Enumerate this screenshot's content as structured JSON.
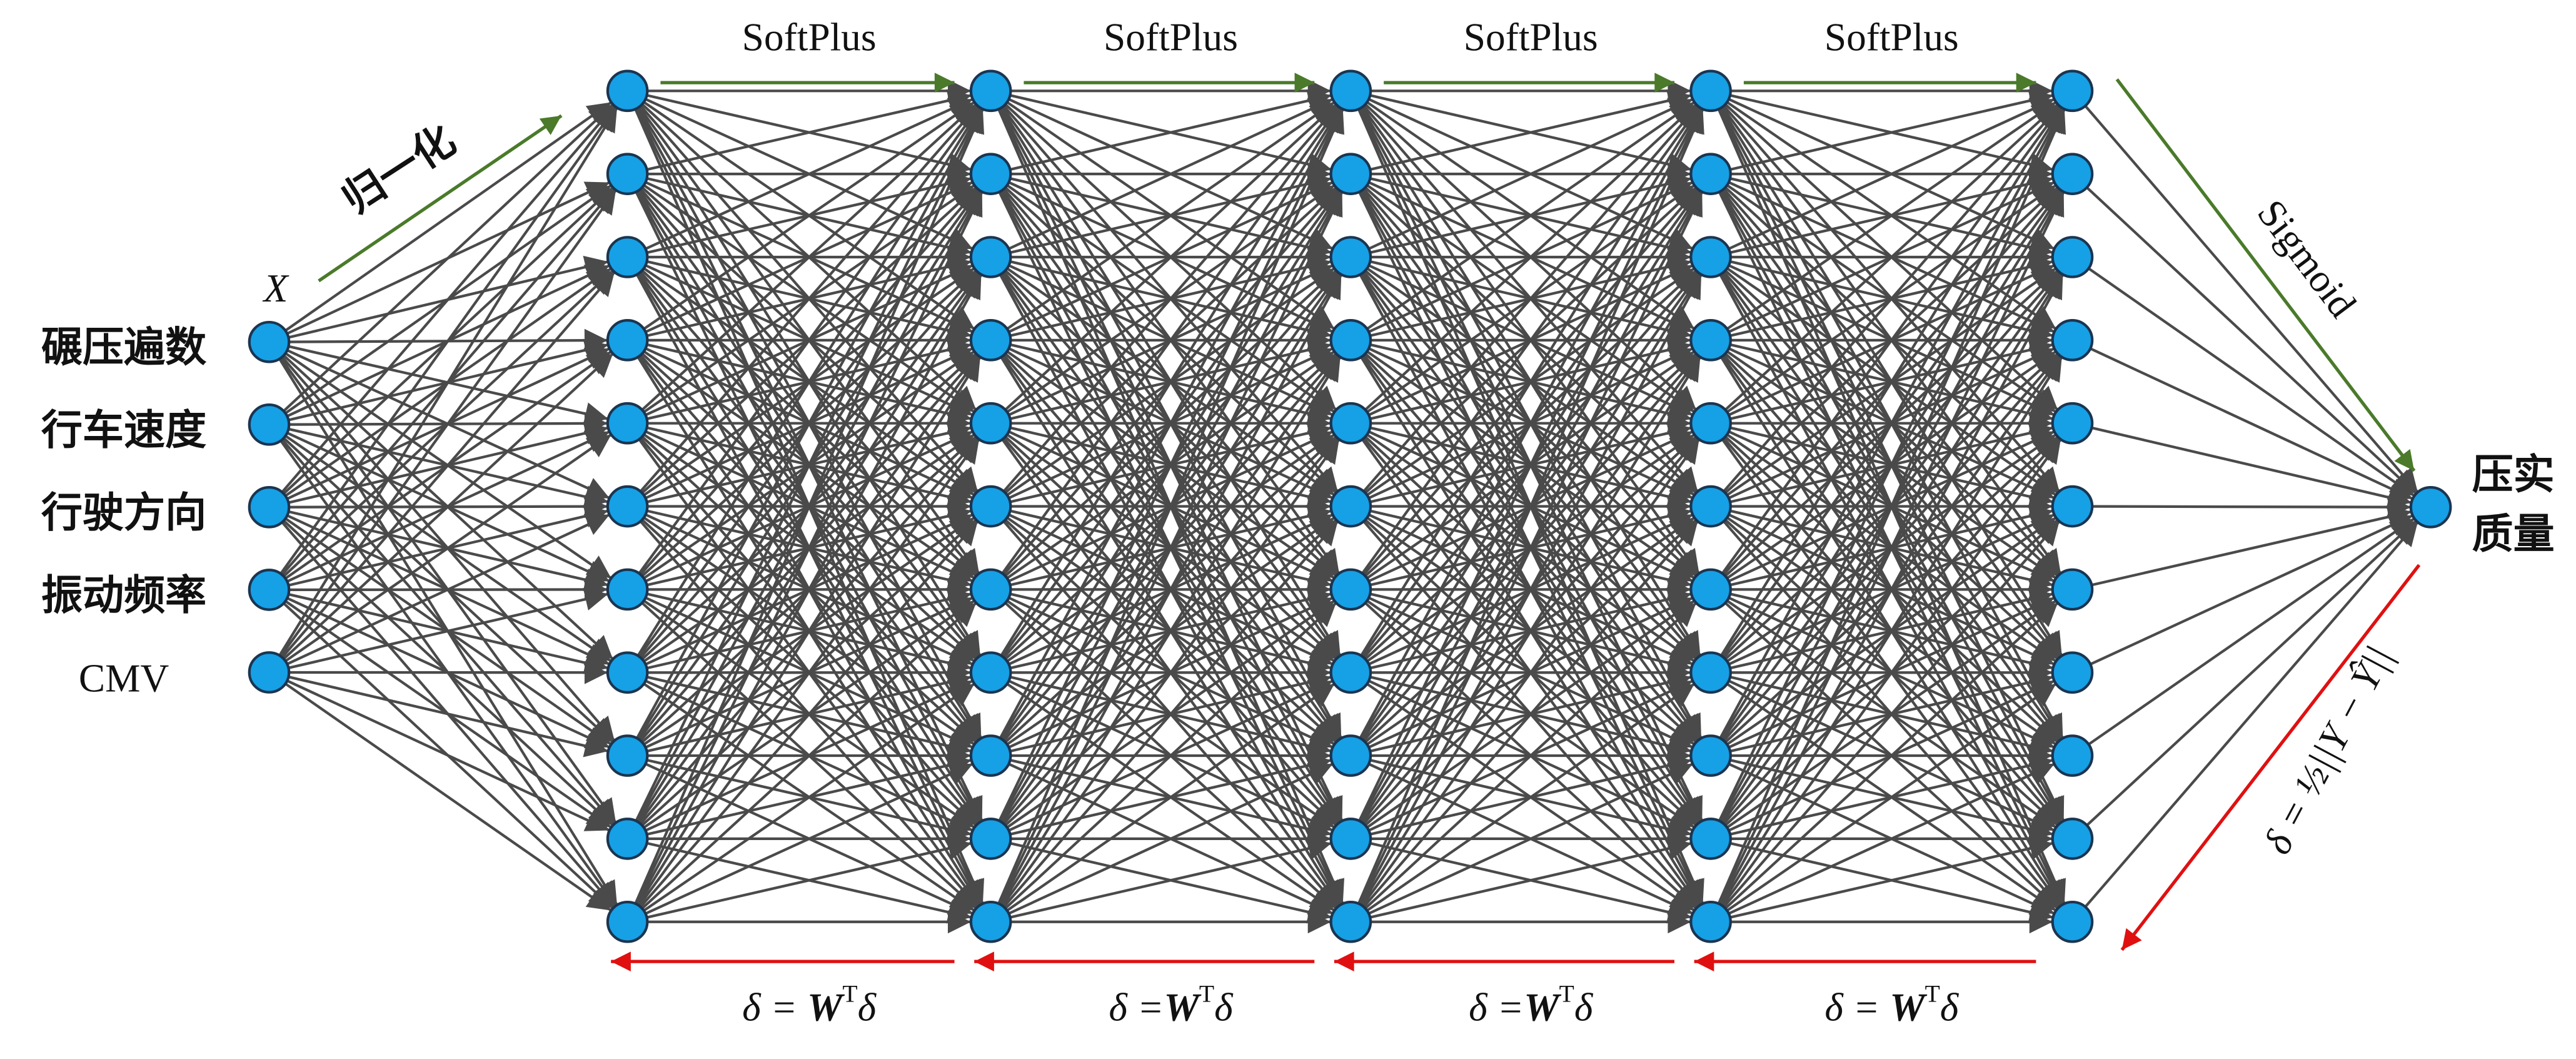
{
  "inputs": [
    "碾压遍数",
    "行车速度",
    "行驶方向",
    "振动频率",
    "CMV"
  ],
  "input_symbol": "X",
  "normalize": "归一化",
  "activations": [
    "SoftPlus",
    "SoftPlus",
    "SoftPlus",
    "SoftPlus"
  ],
  "output_activation": "Sigmoid",
  "output": [
    "压实",
    "质量"
  ],
  "loss": "δ = ½||Y − Ŷ||",
  "backprop": [
    {
      "lhs": "δ = ",
      "w": "W",
      "sup": "T",
      "rhs": "δ"
    },
    {
      "lhs": "δ =",
      "w": "W",
      "sup": "T",
      "rhs": "δ"
    },
    {
      "lhs": "δ =",
      "w": "W",
      "sup": "T",
      "rhs": "δ"
    },
    {
      "lhs": "δ = ",
      "w": "W",
      "sup": "T",
      "rhs": "δ"
    }
  ]
}
